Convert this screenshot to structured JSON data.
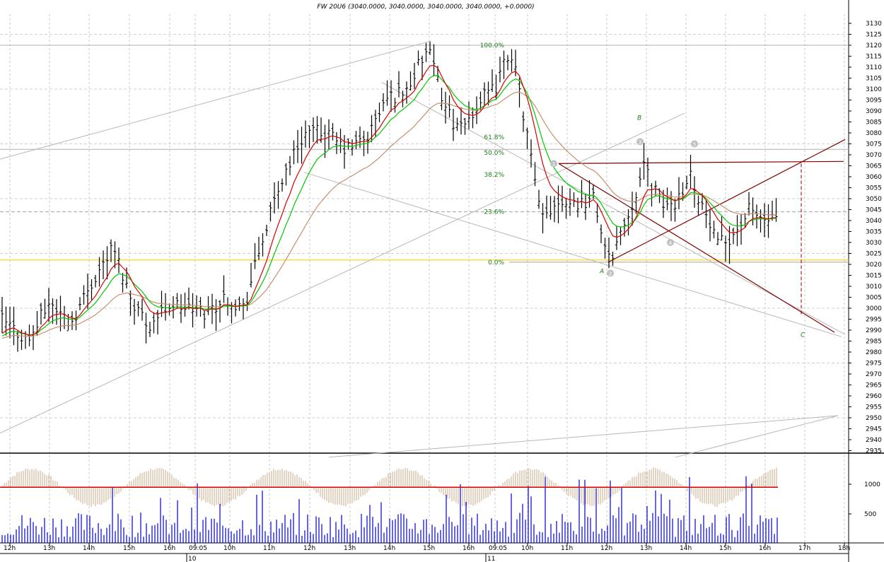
{
  "header": {
    "title": "FW 20U6 (3040.0000, 3040.0000, 3040.0000, 3040.0000, +0.0000)"
  },
  "colors": {
    "red_ma": "#d90000",
    "green_ma": "#00c800",
    "brown_ma": "#c89070",
    "trend": "#800000",
    "price_line": "#ffd000",
    "fib_text": "#1a7d1a",
    "volume": "#0000cc",
    "oscillator": "#c8a888"
  },
  "chart_data": [
    {
      "type": "candlestick-ohlc",
      "title": "FW 20U6 (3040.0000, 3040.0000, 3040.0000, 3040.0000, +0.0000)",
      "y_ticks": [
        3130,
        3125,
        3120,
        3115,
        3110,
        3105,
        3100,
        3095,
        3090,
        3085,
        3080,
        3075,
        3070,
        3065,
        3060,
        3055,
        3050,
        3045,
        3040,
        3035,
        3030,
        3025,
        3020,
        3015,
        3010,
        3005,
        3000,
        2995,
        2990,
        2985,
        2980,
        2975,
        2970,
        2965,
        2960,
        2955,
        2950,
        2945,
        2940,
        2935
      ],
      "ylim": [
        2932,
        3135
      ],
      "x_ticks": [
        "12h",
        "13h",
        "14h",
        "15h",
        "16h",
        "09:05",
        "10h",
        "11h",
        "12h",
        "13h",
        "14h",
        "15h",
        "16h",
        "09:05",
        "10h",
        "11h",
        "12h",
        "13h",
        "14h",
        "15h",
        "16h",
        "17h",
        "18h"
      ],
      "x_day_labels": [
        "10",
        "11"
      ],
      "fib_levels": [
        {
          "label": "100.0%",
          "value": 3120
        },
        {
          "label": "61.8%",
          "value": 3078
        },
        {
          "label": "50.0%",
          "value": 3071
        },
        {
          "label": "38.2%",
          "value": 3061
        },
        {
          "label": "23.6%",
          "value": 3044
        },
        {
          "label": "0.0%",
          "value": 3021
        }
      ],
      "wave_labels": [
        "A",
        "B",
        "C"
      ],
      "wave_numbers": [
        "1",
        "2",
        "3",
        "4",
        "5"
      ],
      "reference_price": 3022,
      "key_prices": {
        "start": 2990,
        "high_day1": 3118,
        "high_day2": 3119,
        "low_A": 3021,
        "close": 3040,
        "target_C": 2997
      }
    },
    {
      "type": "bar",
      "title": "",
      "y_ticks": [
        1000,
        500
      ],
      "reference_value": 950
    }
  ]
}
